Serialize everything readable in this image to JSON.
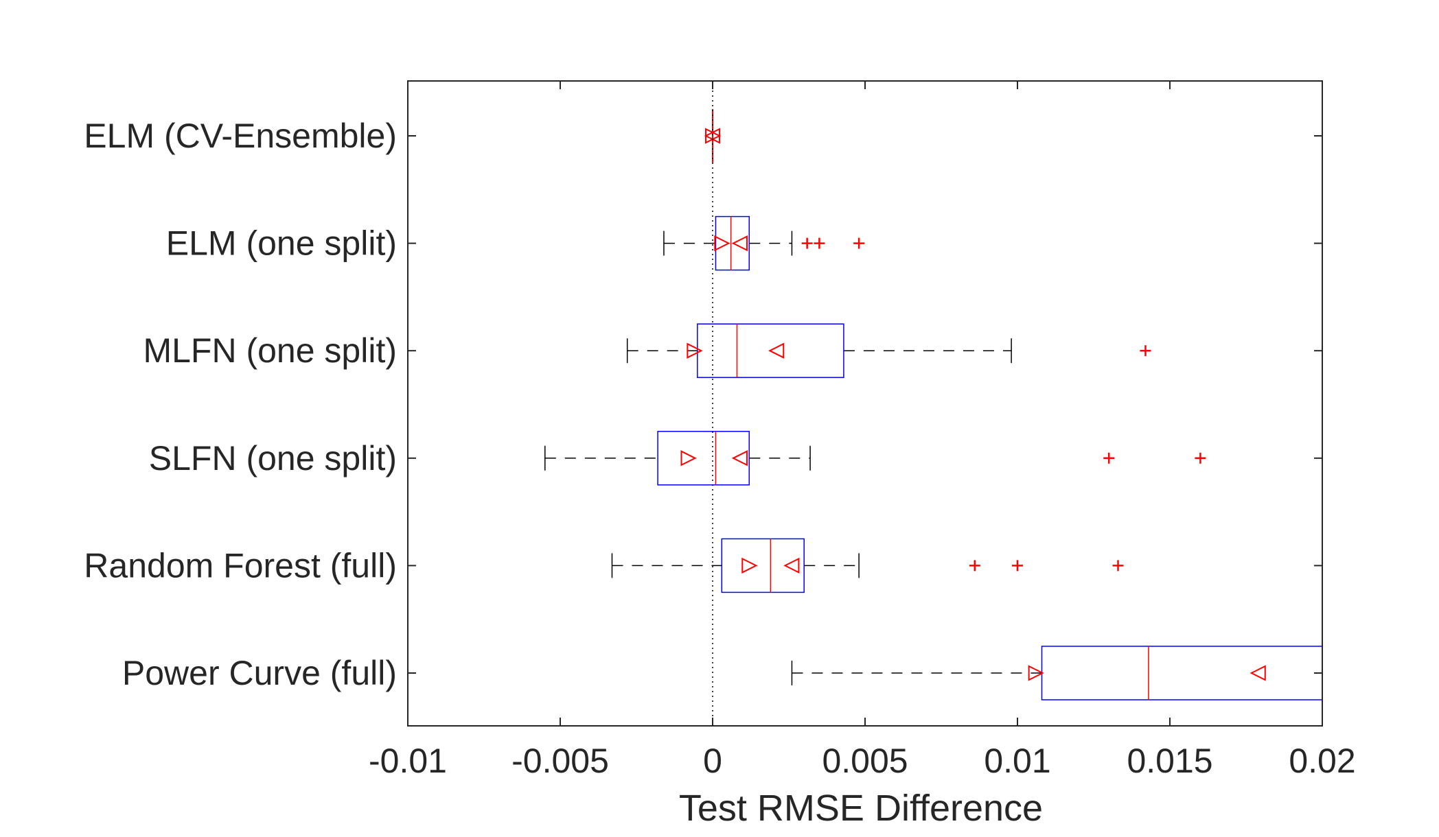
{
  "chart_data": {
    "type": "boxplot",
    "orientation": "horizontal",
    "title": "",
    "xlabel": "Test RMSE Difference",
    "ylabel": "",
    "xlim": [
      -0.01,
      0.02
    ],
    "xticks": [
      -0.01,
      -0.005,
      0,
      0.005,
      0.01,
      0.015,
      0.02
    ],
    "xtick_labels": [
      "-0.01",
      "-0.005",
      "0",
      "0.005",
      "0.01",
      "0.015",
      "0.02"
    ],
    "reference_line_x": 0,
    "grid": false,
    "notched": true,
    "categories": [
      "ELM (CV-Ensemble)",
      "ELM (one split)",
      "MLFN (one split)",
      "SLFN (one split)",
      "Random Forest (full)",
      "Power Curve (full)"
    ],
    "boxes": [
      {
        "whisker_low": 0,
        "q1": 0,
        "notch_low": 0,
        "median": 0,
        "notch_high": 0,
        "q3": 0,
        "whisker_high": 0,
        "outliers": []
      },
      {
        "whisker_low": -0.0016,
        "q1": 0.0001,
        "notch_low": 0.0003,
        "median": 0.0006,
        "notch_high": 0.0009,
        "q3": 0.0012,
        "whisker_high": 0.0026,
        "outliers": [
          0.0031,
          0.0035,
          0.0048
        ]
      },
      {
        "whisker_low": -0.0028,
        "q1": -0.0005,
        "notch_low": -0.0006,
        "median": 0.0008,
        "notch_high": 0.0021,
        "q3": 0.0043,
        "whisker_high": 0.0098,
        "outliers": [
          0.0142
        ]
      },
      {
        "whisker_low": -0.0055,
        "q1": -0.0018,
        "notch_low": -0.0008,
        "median": 0.0001,
        "notch_high": 0.0009,
        "q3": 0.0012,
        "whisker_high": 0.0032,
        "outliers": [
          0.013,
          0.016
        ]
      },
      {
        "whisker_low": -0.0033,
        "q1": 0.0003,
        "notch_low": 0.0012,
        "median": 0.0019,
        "notch_high": 0.0026,
        "q3": 0.003,
        "whisker_high": 0.0048,
        "outliers": [
          0.0086,
          0.01,
          0.0133
        ]
      },
      {
        "whisker_low": 0.0026,
        "q1": 0.0108,
        "notch_low": 0.0106,
        "median": 0.0143,
        "notch_high": 0.0179,
        "q3": 0.02,
        "whisker_high": 0.02,
        "outliers": []
      }
    ],
    "colors": {
      "box": "#0000ff",
      "median": "#ff0000",
      "whisker": "#000000",
      "outlier": "#ff0000",
      "notch_marker": "#ff0000",
      "axis": "#262626"
    }
  }
}
